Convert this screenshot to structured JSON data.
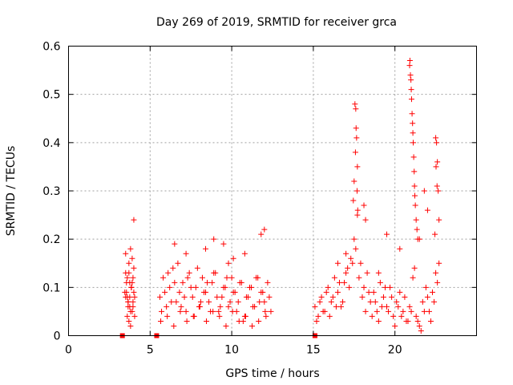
{
  "chart_data": {
    "type": "scatter",
    "title": "Day 269 of 2019, SRMTID for receiver grca",
    "xlabel": "GPS time / hours",
    "ylabel": "SRMTID / TECUs",
    "xlim": [
      0,
      25
    ],
    "ylim": [
      0,
      0.6
    ],
    "xticks": [
      0,
      5,
      10,
      15,
      20
    ],
    "yticks": [
      0,
      0.1,
      0.2,
      0.3,
      0.4,
      0.5,
      0.6
    ],
    "xtick_labels": [
      "0",
      "5",
      "10",
      "15",
      "20"
    ],
    "ytick_labels": [
      "0",
      "0.1",
      "0.2",
      "0.3",
      "0.4",
      "0.5",
      "0.6"
    ],
    "grid": true,
    "color": "#ff0000",
    "marker": "plus",
    "zero_markers_x": [
      3.3,
      5.4,
      15.1
    ],
    "series": [
      {
        "name": "SRMTID",
        "x": [
          3.45,
          3.5,
          3.55,
          3.6,
          3.65,
          3.7,
          3.75,
          3.8,
          3.85,
          3.9,
          3.95,
          4.0,
          4.05,
          3.6,
          3.7,
          3.8,
          3.9,
          4.0,
          3.5,
          3.65,
          3.85,
          3.95,
          3.55,
          3.75,
          3.9,
          4.0,
          3.6,
          3.8,
          3.7,
          3.95,
          3.85,
          3.5,
          3.65,
          4.05,
          3.75,
          5.6,
          5.8,
          6.0,
          6.2,
          6.4,
          6.6,
          6.8,
          7.0,
          7.2,
          7.4,
          7.6,
          7.8,
          8.0,
          8.2,
          8.4,
          8.6,
          8.8,
          9.0,
          9.2,
          9.4,
          9.6,
          9.8,
          10.0,
          10.2,
          10.4,
          10.6,
          10.8,
          11.0,
          11.2,
          11.4,
          11.6,
          11.8,
          12.0,
          12.2,
          12.4,
          5.7,
          5.9,
          6.1,
          6.3,
          6.5,
          6.7,
          6.9,
          7.1,
          7.3,
          7.5,
          7.7,
          7.9,
          8.1,
          8.3,
          8.5,
          8.7,
          8.9,
          9.1,
          9.3,
          9.5,
          9.7,
          9.9,
          10.1,
          10.3,
          10.5,
          10.7,
          10.9,
          11.1,
          11.3,
          11.5,
          11.7,
          11.9,
          12.1,
          12.3,
          5.65,
          6.05,
          6.45,
          6.85,
          7.25,
          7.65,
          8.05,
          8.45,
          8.85,
          9.25,
          9.65,
          10.05,
          10.45,
          10.85,
          11.25,
          11.65,
          12.05,
          6.5,
          7.2,
          8.4,
          8.9,
          9.5,
          10.1,
          11.8,
          12.0,
          10.8,
          9.8,
          15.1,
          15.3,
          15.5,
          15.7,
          15.9,
          16.1,
          16.3,
          16.5,
          16.7,
          16.9,
          17.1,
          17.3,
          17.5,
          17.7,
          17.9,
          18.1,
          18.3,
          18.5,
          18.7,
          18.9,
          19.1,
          19.3,
          19.5,
          19.7,
          19.9,
          20.1,
          20.3,
          20.5,
          20.7,
          20.9,
          21.1,
          21.3,
          21.5,
          21.7,
          21.9,
          22.1,
          22.3,
          22.5,
          22.7,
          15.2,
          15.4,
          15.6,
          15.8,
          16.0,
          16.2,
          16.4,
          16.6,
          16.8,
          17.0,
          17.2,
          17.4,
          17.6,
          17.8,
          18.0,
          18.2,
          18.4,
          18.6,
          18.8,
          19.0,
          19.2,
          19.4,
          19.6,
          19.8,
          20.0,
          20.2,
          20.4,
          20.6,
          20.8,
          21.0,
          21.2,
          21.4,
          21.6,
          21.8,
          22.0,
          22.2,
          22.4,
          22.6,
          17.55,
          17.6,
          17.62,
          17.65,
          17.58,
          17.7,
          17.5,
          17.68,
          17.45,
          17.72,
          20.9,
          20.92,
          20.95,
          20.98,
          21.0,
          21.02,
          21.05,
          21.08,
          21.1,
          21.12,
          21.15,
          21.18,
          21.2,
          21.22,
          21.25,
          21.3,
          21.35,
          21.4,
          22.5,
          22.55,
          22.6,
          22.52,
          22.58,
          22.65,
          22.7,
          22.45,
          18.1,
          18.2,
          19.5,
          21.8,
          22.0,
          16.5,
          17.0,
          19.0,
          20.3,
          21.5
        ],
        "y": [
          0.09,
          0.13,
          0.11,
          0.08,
          0.07,
          0.15,
          0.06,
          0.18,
          0.1,
          0.05,
          0.12,
          0.09,
          0.08,
          0.04,
          0.03,
          0.02,
          0.11,
          0.14,
          0.17,
          0.07,
          0.1,
          0.06,
          0.09,
          0.08,
          0.16,
          0.24,
          0.12,
          0.05,
          0.13,
          0.07,
          0.1,
          0.08,
          0.06,
          0.04,
          0.11,
          0.08,
          0.12,
          0.06,
          0.1,
          0.14,
          0.07,
          0.09,
          0.11,
          0.05,
          0.13,
          0.08,
          0.1,
          0.06,
          0.12,
          0.09,
          0.07,
          0.11,
          0.13,
          0.05,
          0.08,
          0.1,
          0.06,
          0.12,
          0.09,
          0.07,
          0.11,
          0.04,
          0.08,
          0.1,
          0.06,
          0.12,
          0.09,
          0.07,
          0.11,
          0.05,
          0.05,
          0.09,
          0.13,
          0.07,
          0.11,
          0.15,
          0.06,
          0.08,
          0.12,
          0.1,
          0.04,
          0.14,
          0.07,
          0.09,
          0.11,
          0.05,
          0.13,
          0.08,
          0.06,
          0.1,
          0.12,
          0.07,
          0.09,
          0.05,
          0.11,
          0.03,
          0.08,
          0.1,
          0.06,
          0.12,
          0.07,
          0.09,
          0.04,
          0.08,
          0.03,
          0.04,
          0.02,
          0.05,
          0.03,
          0.04,
          0.06,
          0.03,
          0.05,
          0.04,
          0.02,
          0.05,
          0.03,
          0.04,
          0.02,
          0.03,
          0.05,
          0.19,
          0.17,
          0.18,
          0.2,
          0.19,
          0.16,
          0.21,
          0.22,
          0.17,
          0.15,
          0.06,
          0.04,
          0.08,
          0.05,
          0.1,
          0.07,
          0.12,
          0.09,
          0.06,
          0.11,
          0.14,
          0.16,
          0.2,
          0.25,
          0.15,
          0.1,
          0.13,
          0.07,
          0.09,
          0.05,
          0.11,
          0.08,
          0.06,
          0.1,
          0.04,
          0.07,
          0.09,
          0.05,
          0.03,
          0.06,
          0.12,
          0.04,
          0.02,
          0.07,
          0.1,
          0.05,
          0.09,
          0.13,
          0.15,
          0.03,
          0.07,
          0.05,
          0.09,
          0.04,
          0.08,
          0.06,
          0.11,
          0.07,
          0.13,
          0.1,
          0.15,
          0.18,
          0.12,
          0.08,
          0.05,
          0.09,
          0.04,
          0.07,
          0.03,
          0.06,
          0.1,
          0.05,
          0.08,
          0.02,
          0.06,
          0.04,
          0.08,
          0.03,
          0.05,
          0.14,
          0.03,
          0.01,
          0.05,
          0.08,
          0.03,
          0.07,
          0.11,
          0.48,
          0.47,
          0.43,
          0.41,
          0.38,
          0.35,
          0.32,
          0.3,
          0.28,
          0.26,
          0.56,
          0.57,
          0.54,
          0.53,
          0.51,
          0.49,
          0.46,
          0.44,
          0.42,
          0.4,
          0.37,
          0.34,
          0.31,
          0.29,
          0.27,
          0.24,
          0.22,
          0.2,
          0.41,
          0.4,
          0.36,
          0.35,
          0.31,
          0.3,
          0.24,
          0.21,
          0.27,
          0.24,
          0.21,
          0.3,
          0.26,
          0.15,
          0.17,
          0.13,
          0.18,
          0.2
        ]
      }
    ]
  }
}
